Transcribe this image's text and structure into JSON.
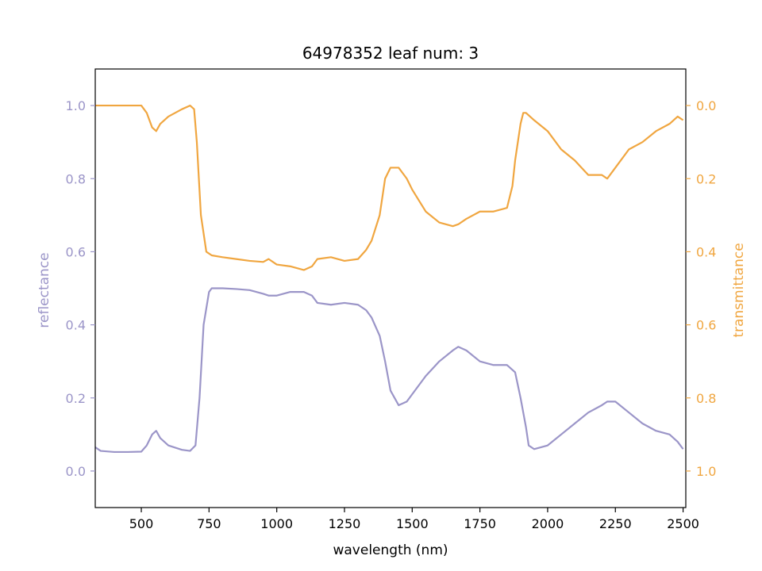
{
  "colors": {
    "reflectance": "#9b95c8",
    "transmittance": "#f0a640",
    "axis": "#000000",
    "background": "#ffffff"
  },
  "chart_data": {
    "type": "line",
    "title": "64978352 leaf num: 3",
    "xlabel": "wavelength (nm)",
    "ylabel_left": "reflectance",
    "ylabel_right": "transmittance",
    "xlim": [
      330,
      2510
    ],
    "ylim_left": [
      -0.1,
      1.1
    ],
    "ylim_right_inverted": [
      1.1,
      -0.1
    ],
    "x_ticks": [
      500,
      750,
      1000,
      1250,
      1500,
      1750,
      2000,
      2250,
      2500
    ],
    "x_tick_labels": [
      "500",
      "750",
      "1000",
      "1250",
      "1500",
      "1750",
      "2000",
      "2250",
      "2500"
    ],
    "y_left_ticks": [
      0.0,
      0.2,
      0.4,
      0.6,
      0.8,
      1.0
    ],
    "y_left_tick_labels": [
      "0.0",
      "0.2",
      "0.4",
      "0.6",
      "0.8",
      "1.0"
    ],
    "y_right_ticks": [
      0.0,
      0.2,
      0.4,
      0.6,
      0.8,
      1.0
    ],
    "y_right_tick_labels": [
      "0.0",
      "0.2",
      "0.4",
      "0.6",
      "0.8",
      "1.0"
    ],
    "grid": false,
    "series": [
      {
        "axis": "left",
        "color": "#9b95c8",
        "x": [
          330,
          350,
          400,
          450,
          500,
          520,
          540,
          555,
          570,
          600,
          650,
          680,
          700,
          715,
          730,
          750,
          760,
          800,
          850,
          900,
          950,
          970,
          1000,
          1050,
          1100,
          1130,
          1150,
          1200,
          1250,
          1300,
          1330,
          1350,
          1380,
          1400,
          1420,
          1450,
          1480,
          1500,
          1550,
          1600,
          1650,
          1670,
          1700,
          1750,
          1800,
          1850,
          1880,
          1900,
          1920,
          1930,
          1950,
          2000,
          2050,
          2100,
          2150,
          2200,
          2220,
          2250,
          2300,
          2350,
          2400,
          2450,
          2480,
          2500
        ],
        "y": [
          0.065,
          0.055,
          0.052,
          0.052,
          0.053,
          0.07,
          0.1,
          0.11,
          0.09,
          0.07,
          0.058,
          0.055,
          0.07,
          0.2,
          0.4,
          0.49,
          0.5,
          0.5,
          0.498,
          0.495,
          0.485,
          0.48,
          0.48,
          0.49,
          0.49,
          0.48,
          0.46,
          0.455,
          0.46,
          0.455,
          0.44,
          0.42,
          0.37,
          0.3,
          0.22,
          0.18,
          0.19,
          0.21,
          0.26,
          0.3,
          0.33,
          0.34,
          0.33,
          0.3,
          0.29,
          0.29,
          0.27,
          0.2,
          0.12,
          0.07,
          0.06,
          0.07,
          0.1,
          0.13,
          0.16,
          0.18,
          0.19,
          0.19,
          0.16,
          0.13,
          0.11,
          0.1,
          0.08,
          0.06
        ]
      },
      {
        "axis": "right",
        "color": "#f0a640",
        "x": [
          330,
          350,
          400,
          450,
          500,
          520,
          540,
          555,
          570,
          600,
          650,
          680,
          695,
          705,
          720,
          740,
          760,
          800,
          850,
          900,
          950,
          970,
          1000,
          1050,
          1100,
          1130,
          1150,
          1200,
          1250,
          1300,
          1330,
          1350,
          1380,
          1400,
          1420,
          1450,
          1480,
          1500,
          1550,
          1600,
          1650,
          1670,
          1700,
          1750,
          1800,
          1850,
          1870,
          1880,
          1900,
          1910,
          1920,
          1950,
          2000,
          2050,
          2100,
          2150,
          2200,
          2220,
          2250,
          2300,
          2350,
          2400,
          2450,
          2480,
          2500
        ],
        "y": [
          0.0,
          0.0,
          0.0,
          0.0,
          0.0,
          0.02,
          0.06,
          0.07,
          0.05,
          0.03,
          0.01,
          0.0,
          0.01,
          0.1,
          0.3,
          0.4,
          0.41,
          0.415,
          0.42,
          0.425,
          0.428,
          0.42,
          0.435,
          0.44,
          0.45,
          0.44,
          0.42,
          0.415,
          0.425,
          0.42,
          0.395,
          0.37,
          0.3,
          0.2,
          0.17,
          0.17,
          0.2,
          0.23,
          0.29,
          0.32,
          0.33,
          0.325,
          0.31,
          0.29,
          0.29,
          0.28,
          0.22,
          0.15,
          0.05,
          0.02,
          0.02,
          0.04,
          0.07,
          0.12,
          0.15,
          0.19,
          0.19,
          0.2,
          0.17,
          0.12,
          0.1,
          0.07,
          0.05,
          0.03,
          0.04
        ]
      }
    ]
  }
}
